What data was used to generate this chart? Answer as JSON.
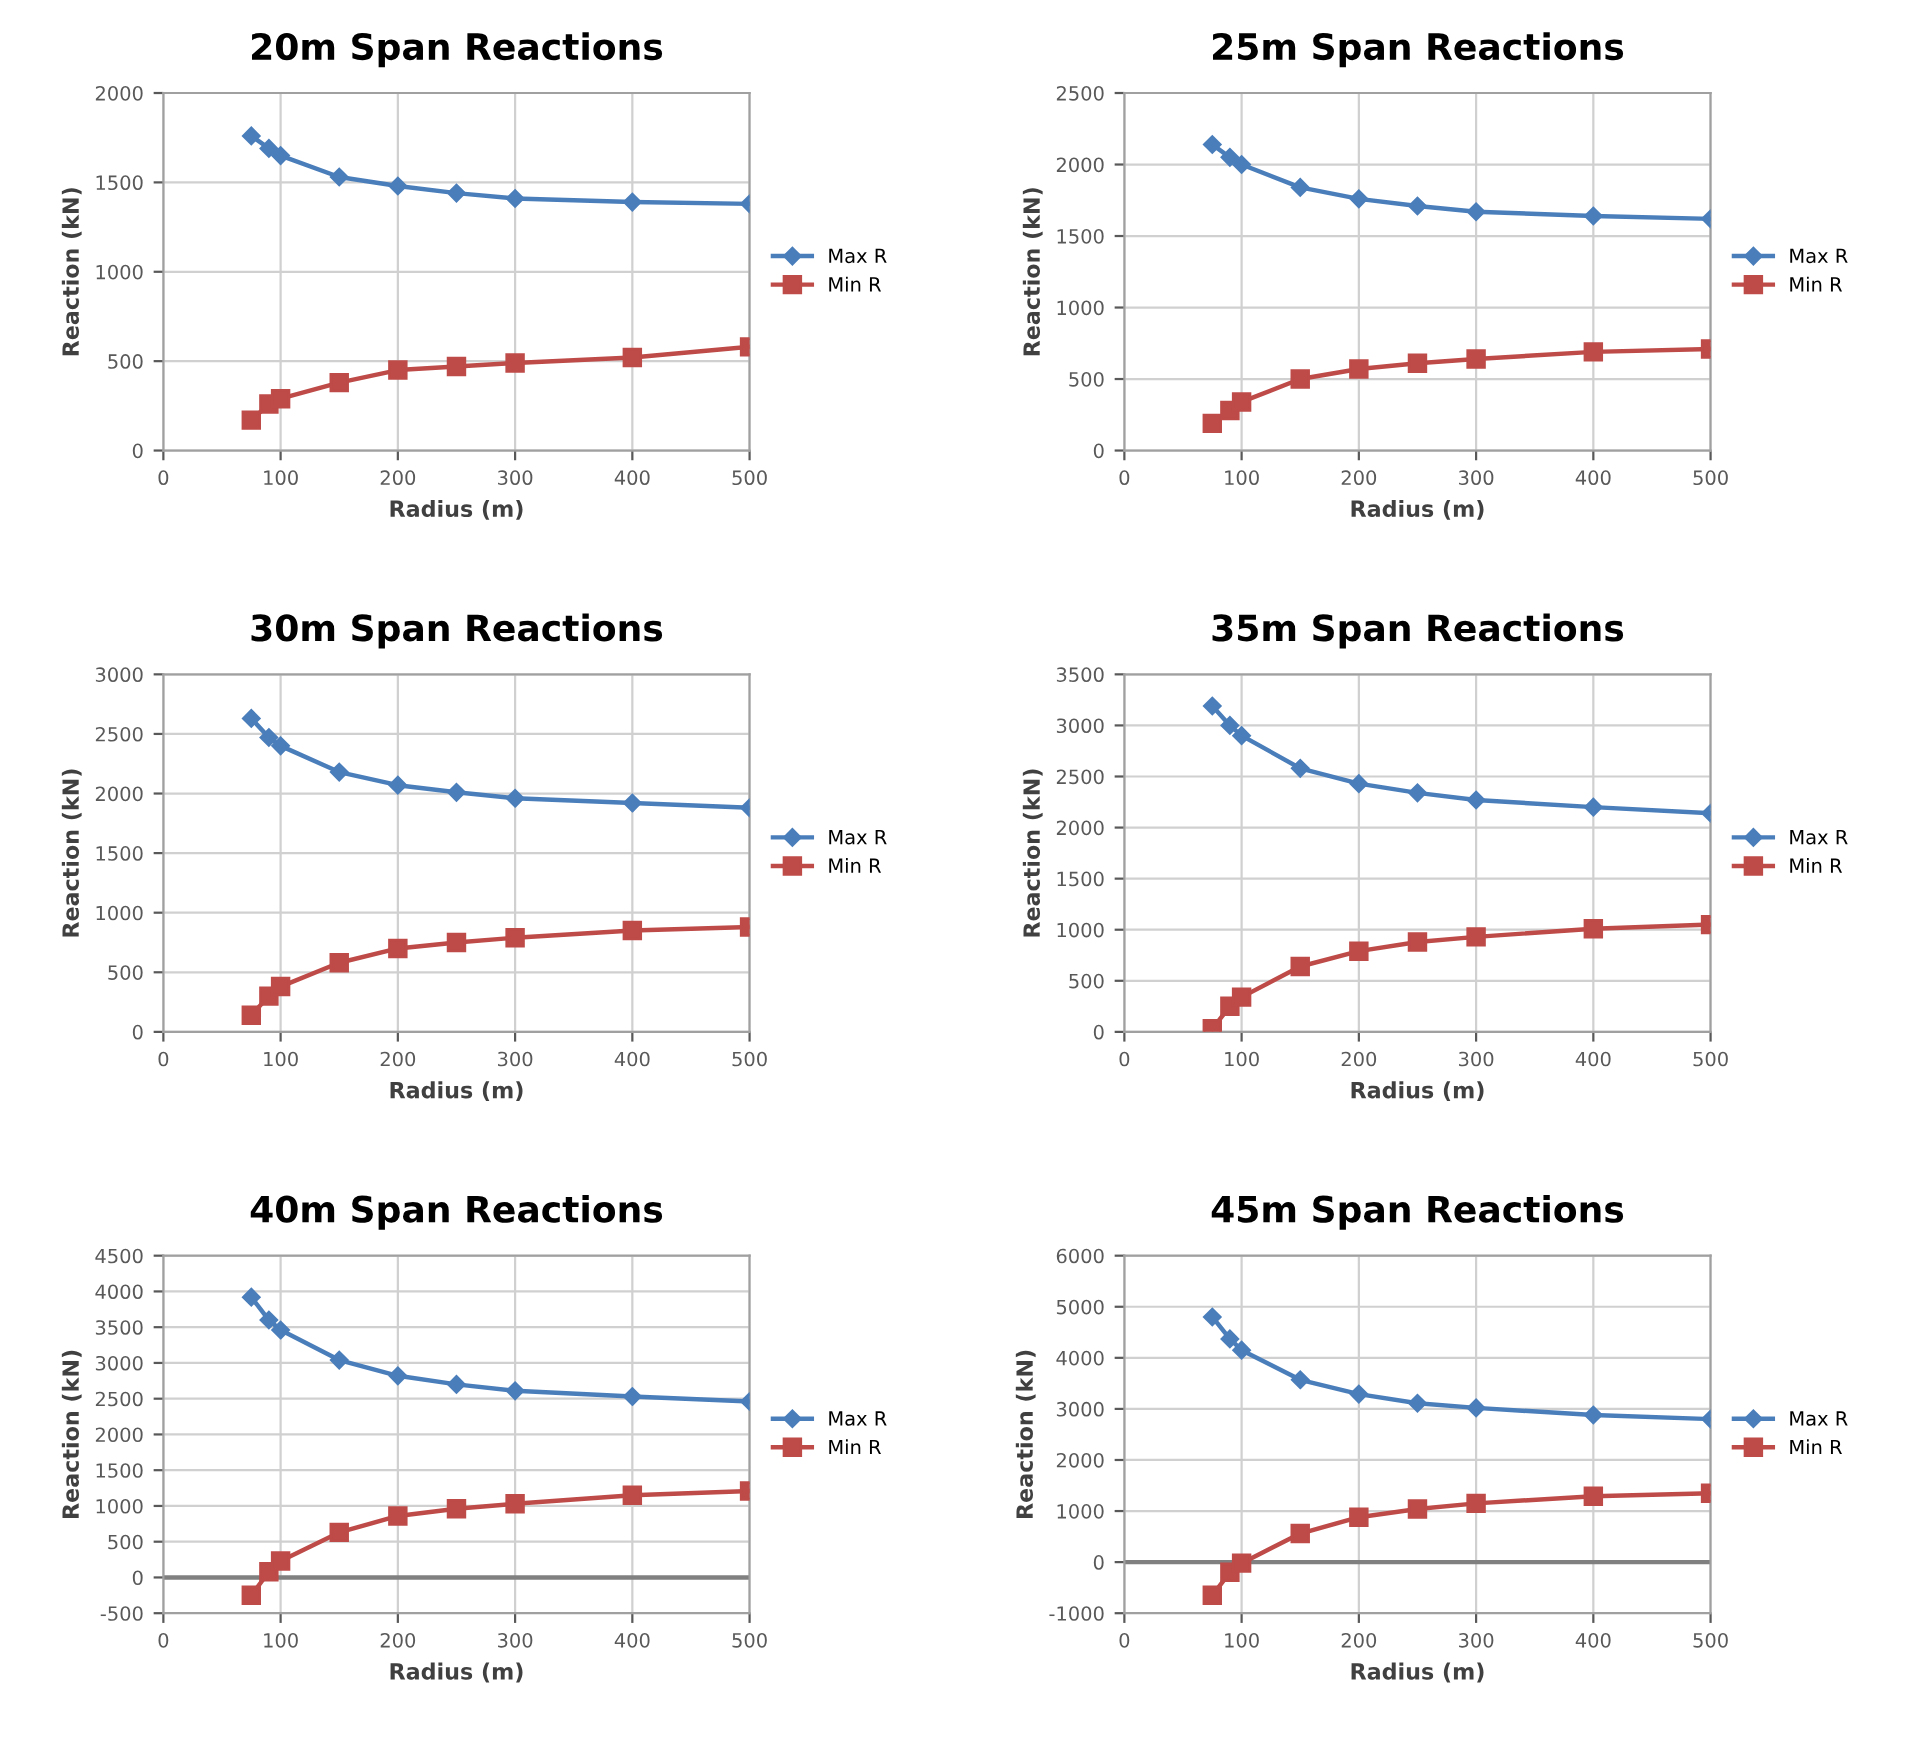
{
  "chart_data": [
    {
      "type": "line",
      "title": "20m Span Reactions",
      "xlabel": "Radius (m)",
      "ylabel": "Reaction (kN)",
      "x": [
        75,
        90,
        100,
        150,
        200,
        250,
        300,
        400,
        500
      ],
      "xlim": [
        0,
        500
      ],
      "xticks": [
        0,
        100,
        200,
        300,
        400,
        500
      ],
      "ylim": [
        0,
        2000
      ],
      "yticks": [
        0,
        500,
        1000,
        1500,
        2000
      ],
      "grid": true,
      "legend": "right",
      "series": [
        {
          "name": "Max R",
          "color": "#4a7ebb",
          "marker": "diamond",
          "values": [
            1760,
            1690,
            1650,
            1530,
            1480,
            1440,
            1410,
            1390,
            1380
          ]
        },
        {
          "name": "Min R",
          "color": "#be4b48",
          "marker": "square",
          "values": [
            170,
            260,
            290,
            380,
            450,
            470,
            490,
            520,
            580
          ]
        }
      ]
    },
    {
      "type": "line",
      "title": "25m Span Reactions",
      "xlabel": "Radius (m)",
      "ylabel": "Reaction (kN)",
      "x": [
        75,
        90,
        100,
        150,
        200,
        250,
        300,
        400,
        500
      ],
      "xlim": [
        0,
        500
      ],
      "xticks": [
        0,
        100,
        200,
        300,
        400,
        500
      ],
      "ylim": [
        0,
        2500
      ],
      "yticks": [
        0,
        500,
        1000,
        1500,
        2000,
        2500
      ],
      "grid": true,
      "legend": "right",
      "series": [
        {
          "name": "Max R",
          "color": "#4a7ebb",
          "marker": "diamond",
          "values": [
            2140,
            2050,
            2000,
            1840,
            1760,
            1710,
            1670,
            1640,
            1620
          ]
        },
        {
          "name": "Min R",
          "color": "#be4b48",
          "marker": "square",
          "values": [
            190,
            280,
            340,
            500,
            570,
            610,
            640,
            690,
            710
          ]
        }
      ]
    },
    {
      "type": "line",
      "title": "30m Span Reactions",
      "xlabel": "Radius (m)",
      "ylabel": "Reaction (kN)",
      "x": [
        75,
        90,
        100,
        150,
        200,
        250,
        300,
        400,
        500
      ],
      "xlim": [
        0,
        500
      ],
      "xticks": [
        0,
        100,
        200,
        300,
        400,
        500
      ],
      "ylim": [
        0,
        3000
      ],
      "yticks": [
        0,
        500,
        1000,
        1500,
        2000,
        2500,
        3000
      ],
      "grid": true,
      "legend": "right",
      "series": [
        {
          "name": "Max R",
          "color": "#4a7ebb",
          "marker": "diamond",
          "values": [
            2630,
            2470,
            2400,
            2180,
            2070,
            2010,
            1960,
            1920,
            1880
          ]
        },
        {
          "name": "Min R",
          "color": "#be4b48",
          "marker": "square",
          "values": [
            140,
            300,
            380,
            580,
            700,
            750,
            790,
            850,
            880
          ]
        }
      ]
    },
    {
      "type": "line",
      "title": "35m Span Reactions",
      "xlabel": "Radius (m)",
      "ylabel": "Reaction (kN)",
      "x": [
        75,
        90,
        100,
        150,
        200,
        250,
        300,
        400,
        500
      ],
      "xlim": [
        0,
        500
      ],
      "xticks": [
        0,
        100,
        200,
        300,
        400,
        500
      ],
      "ylim": [
        0,
        3500
      ],
      "yticks": [
        0,
        500,
        1000,
        1500,
        2000,
        2500,
        3000,
        3500
      ],
      "grid": true,
      "legend": "right",
      "series": [
        {
          "name": "Max R",
          "color": "#4a7ebb",
          "marker": "diamond",
          "values": [
            3190,
            3000,
            2900,
            2580,
            2430,
            2340,
            2270,
            2200,
            2140
          ]
        },
        {
          "name": "Min R",
          "color": "#be4b48",
          "marker": "square",
          "values": [
            30,
            250,
            340,
            640,
            790,
            880,
            930,
            1010,
            1050
          ]
        }
      ]
    },
    {
      "type": "line",
      "title": "40m Span Reactions",
      "xlabel": "Radius (m)",
      "ylabel": "Reaction (kN)",
      "x": [
        75,
        90,
        100,
        150,
        200,
        250,
        300,
        400,
        500
      ],
      "xlim": [
        0,
        500
      ],
      "xticks": [
        0,
        100,
        200,
        300,
        400,
        500
      ],
      "ylim": [
        -500,
        4500
      ],
      "yticks": [
        -500,
        0,
        500,
        1000,
        1500,
        2000,
        2500,
        3000,
        3500,
        4000,
        4500
      ],
      "grid": true,
      "legend": "right",
      "ref_lines": [
        {
          "axis": "y",
          "value": 0,
          "color": "#808080"
        }
      ],
      "series": [
        {
          "name": "Max R",
          "color": "#4a7ebb",
          "marker": "diamond",
          "values": [
            3920,
            3600,
            3460,
            3040,
            2820,
            2700,
            2610,
            2530,
            2460
          ]
        },
        {
          "name": "Min R",
          "color": "#be4b48",
          "marker": "square",
          "values": [
            -250,
            80,
            230,
            630,
            860,
            960,
            1030,
            1150,
            1210
          ]
        }
      ]
    },
    {
      "type": "line",
      "title": "45m Span Reactions",
      "xlabel": "Radius (m)",
      "ylabel": "Reaction (kN)",
      "x": [
        75,
        90,
        100,
        150,
        200,
        250,
        300,
        400,
        500
      ],
      "xlim": [
        0,
        500
      ],
      "xticks": [
        0,
        100,
        200,
        300,
        400,
        500
      ],
      "ylim": [
        -1000,
        6000
      ],
      "yticks": [
        -1000,
        0,
        1000,
        2000,
        3000,
        4000,
        5000,
        6000
      ],
      "grid": true,
      "legend": "right",
      "ref_lines": [
        {
          "axis": "y",
          "value": 0,
          "color": "#808080"
        }
      ],
      "series": [
        {
          "name": "Max R",
          "color": "#4a7ebb",
          "marker": "diamond",
          "values": [
            4800,
            4370,
            4150,
            3570,
            3290,
            3110,
            3020,
            2880,
            2800
          ]
        },
        {
          "name": "Min R",
          "color": "#be4b48",
          "marker": "square",
          "values": [
            -650,
            -200,
            -20,
            560,
            880,
            1040,
            1150,
            1290,
            1350
          ]
        }
      ]
    }
  ]
}
